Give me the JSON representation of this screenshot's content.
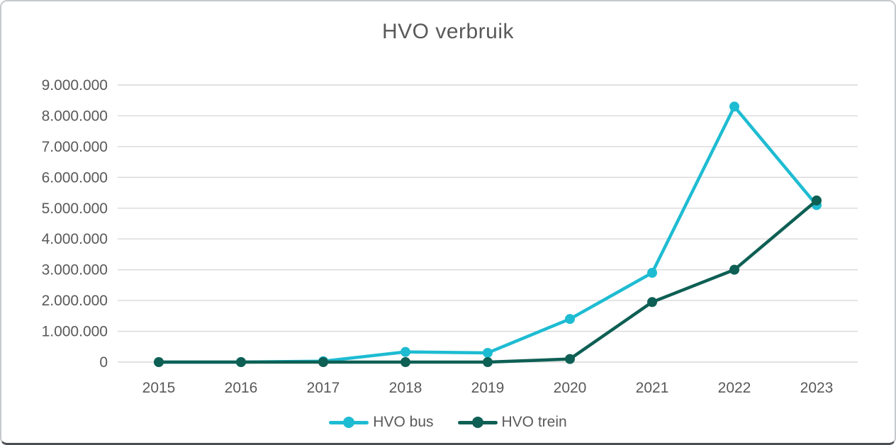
{
  "frame": {
    "background": "#ffffff",
    "border_color": "#c6c9cc"
  },
  "chart_data": {
    "type": "line",
    "title": "HVO verbruik",
    "categories": [
      "2015",
      "2016",
      "2017",
      "2018",
      "2019",
      "2020",
      "2021",
      "2022",
      "2023"
    ],
    "series": [
      {
        "name": "HVO bus",
        "color": "#1ebcd2",
        "values": [
          0,
          0,
          30000,
          330000,
          300000,
          1400000,
          2900000,
          8300000,
          5100000
        ]
      },
      {
        "name": "HVO trein",
        "color": "#0e5f54",
        "values": [
          0,
          0,
          0,
          0,
          0,
          100000,
          1950000,
          3000000,
          5250000
        ]
      }
    ],
    "ylim": [
      0,
      9000000
    ],
    "ytick_interval": 1000000,
    "ytick_labels": [
      "0",
      "1.000.000",
      "2.000.000",
      "3.000.000",
      "4.000.000",
      "5.000.000",
      "6.000.000",
      "7.000.000",
      "8.000.000",
      "9.000.000"
    ],
    "xlabel": "",
    "ylabel": "",
    "grid": "horizontal",
    "gridline_color": "#d9d9d9",
    "text_color": "#595959",
    "legend_position": "bottom"
  }
}
